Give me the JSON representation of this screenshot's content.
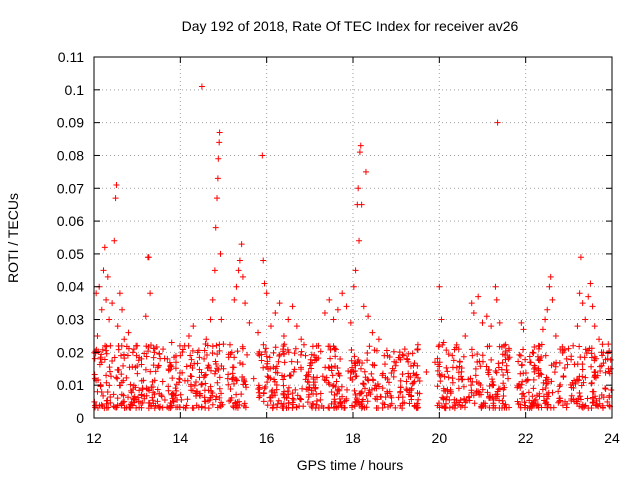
{
  "chart_data": {
    "type": "scatter",
    "title": "Day 192 of 2018, Rate Of TEC Index for receiver av26",
    "xlabel": "GPS time / hours",
    "ylabel": "ROTI / TECUs",
    "xlim": [
      12,
      24
    ],
    "ylim": [
      0,
      0.11
    ],
    "xticks": [
      12,
      14,
      16,
      18,
      20,
      22,
      24
    ],
    "xtick_labels": [
      "12",
      "14",
      "16",
      "18",
      "20",
      "22",
      "24"
    ],
    "yticks": [
      0,
      0.01,
      0.02,
      0.03,
      0.04,
      0.05,
      0.06,
      0.07,
      0.08,
      0.09,
      0.1,
      0.11
    ],
    "ytick_labels": [
      "0",
      "0.01",
      "0.02",
      "0.03",
      "0.04",
      "0.05",
      "0.06",
      "0.07",
      "0.08",
      "0.09",
      "0.1",
      "0.11"
    ],
    "grid": true,
    "marker": "+",
    "color": "#ff0000",
    "series": [
      {
        "name": "ROTI",
        "points": [
          [
            12.02,
            0.012
          ],
          [
            12.05,
            0.038
          ],
          [
            12.08,
            0.025
          ],
          [
            12.12,
            0.04
          ],
          [
            12.15,
            0.018
          ],
          [
            12.18,
            0.033
          ],
          [
            12.22,
            0.045
          ],
          [
            12.25,
            0.052
          ],
          [
            12.28,
            0.036
          ],
          [
            12.32,
            0.043
          ],
          [
            12.35,
            0.03
          ],
          [
            12.38,
            0.022
          ],
          [
            12.42,
            0.035
          ],
          [
            12.47,
            0.054
          ],
          [
            12.5,
            0.067
          ],
          [
            12.52,
            0.071
          ],
          [
            12.55,
            0.028
          ],
          [
            12.6,
            0.038
          ],
          [
            12.65,
            0.033
          ],
          [
            12.7,
            0.024
          ],
          [
            12.8,
            0.026
          ],
          [
            12.9,
            0.02
          ],
          [
            13.0,
            0.022
          ],
          [
            13.1,
            0.018
          ],
          [
            13.2,
            0.031
          ],
          [
            13.25,
            0.049
          ],
          [
            13.27,
            0.049
          ],
          [
            13.3,
            0.038
          ],
          [
            13.4,
            0.02
          ],
          [
            13.5,
            0.016
          ],
          [
            13.6,
            0.021
          ],
          [
            13.7,
            0.018
          ],
          [
            13.8,
            0.023
          ],
          [
            13.9,
            0.017
          ],
          [
            14.0,
            0.019
          ],
          [
            14.1,
            0.022
          ],
          [
            14.2,
            0.025
          ],
          [
            14.3,
            0.028
          ],
          [
            14.4,
            0.02
          ],
          [
            14.5,
            0.101
          ],
          [
            14.55,
            0.018
          ],
          [
            14.6,
            0.024
          ],
          [
            14.7,
            0.03
          ],
          [
            14.75,
            0.036
          ],
          [
            14.8,
            0.045
          ],
          [
            14.82,
            0.058
          ],
          [
            14.85,
            0.067
          ],
          [
            14.87,
            0.073
          ],
          [
            14.88,
            0.079
          ],
          [
            14.9,
            0.084
          ],
          [
            14.91,
            0.087
          ],
          [
            14.93,
            0.05
          ],
          [
            14.95,
            0.03
          ],
          [
            15.0,
            0.015
          ],
          [
            15.1,
            0.012
          ],
          [
            15.25,
            0.036
          ],
          [
            15.3,
            0.04
          ],
          [
            15.35,
            0.045
          ],
          [
            15.38,
            0.048
          ],
          [
            15.42,
            0.053
          ],
          [
            15.45,
            0.043
          ],
          [
            15.5,
            0.035
          ],
          [
            15.6,
            0.029
          ],
          [
            15.7,
            0.012
          ],
          [
            15.8,
            0.026
          ],
          [
            15.9,
            0.08
          ],
          [
            15.92,
            0.048
          ],
          [
            15.95,
            0.041
          ],
          [
            16.0,
            0.038
          ],
          [
            16.1,
            0.028
          ],
          [
            16.2,
            0.032
          ],
          [
            16.3,
            0.035
          ],
          [
            16.4,
            0.025
          ],
          [
            16.5,
            0.03
          ],
          [
            16.6,
            0.034
          ],
          [
            16.7,
            0.028
          ],
          [
            16.8,
            0.024
          ],
          [
            16.9,
            0.019
          ],
          [
            17.0,
            0.016
          ],
          [
            17.2,
            0.022
          ],
          [
            17.35,
            0.032
          ],
          [
            17.45,
            0.036
          ],
          [
            17.55,
            0.03
          ],
          [
            17.65,
            0.033
          ],
          [
            17.75,
            0.038
          ],
          [
            17.85,
            0.034
          ],
          [
            17.95,
            0.029
          ],
          [
            18.02,
            0.04
          ],
          [
            18.06,
            0.045
          ],
          [
            18.1,
            0.065
          ],
          [
            18.12,
            0.07
          ],
          [
            18.14,
            0.054
          ],
          [
            18.16,
            0.081
          ],
          [
            18.18,
            0.083
          ],
          [
            18.2,
            0.065
          ],
          [
            18.25,
            0.034
          ],
          [
            18.3,
            0.075
          ],
          [
            18.35,
            0.031
          ],
          [
            18.45,
            0.026
          ],
          [
            18.6,
            0.024
          ],
          [
            18.8,
            0.019
          ],
          [
            19.0,
            0.017
          ],
          [
            19.2,
            0.021
          ],
          [
            19.4,
            0.016
          ],
          [
            19.5,
            0.021
          ],
          [
            19.7,
            0.014
          ],
          [
            19.9,
            0.017
          ],
          [
            20.0,
            0.04
          ],
          [
            20.05,
            0.03
          ],
          [
            20.1,
            0.023
          ],
          [
            20.3,
            0.019
          ],
          [
            20.45,
            0.021
          ],
          [
            20.6,
            0.025
          ],
          [
            20.75,
            0.035
          ],
          [
            20.8,
            0.032
          ],
          [
            20.9,
            0.037
          ],
          [
            21.0,
            0.029
          ],
          [
            21.1,
            0.031
          ],
          [
            21.2,
            0.028
          ],
          [
            21.3,
            0.04
          ],
          [
            21.33,
            0.036
          ],
          [
            21.35,
            0.09
          ],
          [
            21.4,
            0.029
          ],
          [
            21.5,
            0.022
          ],
          [
            21.6,
            0.018
          ],
          [
            21.9,
            0.029
          ],
          [
            21.95,
            0.027
          ],
          [
            22.1,
            0.017
          ],
          [
            22.2,
            0.016
          ],
          [
            22.3,
            0.022
          ],
          [
            22.4,
            0.027
          ],
          [
            22.45,
            0.03
          ],
          [
            22.5,
            0.033
          ],
          [
            22.55,
            0.04
          ],
          [
            22.58,
            0.043
          ],
          [
            22.62,
            0.036
          ],
          [
            22.7,
            0.025
          ],
          [
            22.8,
            0.021
          ],
          [
            22.95,
            0.018
          ],
          [
            23.1,
            0.022
          ],
          [
            23.2,
            0.028
          ],
          [
            23.25,
            0.038
          ],
          [
            23.28,
            0.049
          ],
          [
            23.32,
            0.035
          ],
          [
            23.38,
            0.03
          ],
          [
            23.45,
            0.037
          ],
          [
            23.5,
            0.041
          ],
          [
            23.55,
            0.034
          ],
          [
            23.6,
            0.028
          ],
          [
            23.7,
            0.024
          ],
          [
            23.8,
            0.02
          ],
          [
            23.9,
            0.018
          ],
          [
            23.97,
            0.015
          ]
        ]
      }
    ],
    "dense_band": {
      "segments": [
        [
          12.0,
          15.0
        ],
        [
          15.1,
          15.55
        ],
        [
          15.8,
          19.55
        ],
        [
          19.95,
          21.65
        ],
        [
          21.8,
          24.0
        ]
      ],
      "y_min": 0.003,
      "y_typical_max": 0.02,
      "count_per_hour": 110
    }
  }
}
